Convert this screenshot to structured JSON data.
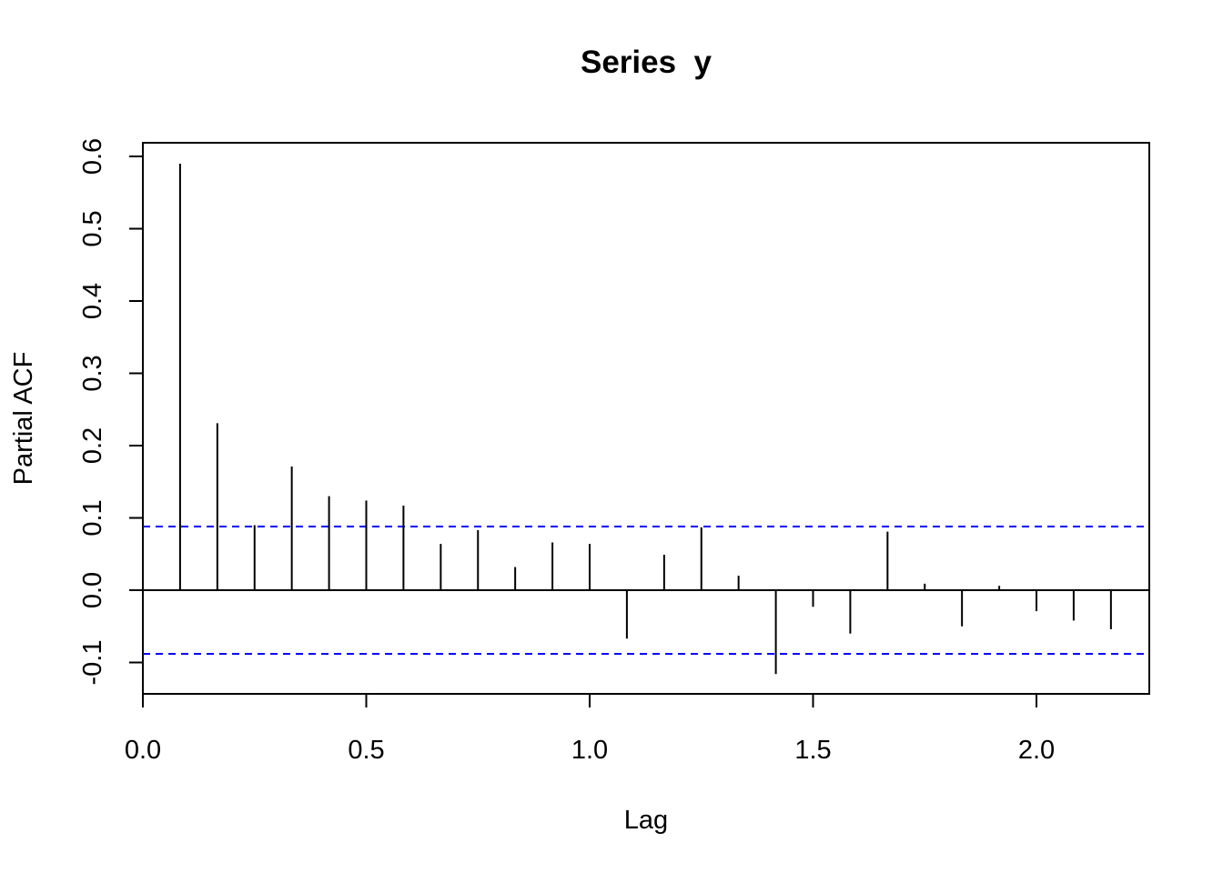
{
  "chart_data": {
    "type": "bar",
    "title": "Series  y",
    "xlabel": "Lag",
    "ylabel": "Partial ACF",
    "xlim": [
      0,
      2.25
    ],
    "ylim": [
      -0.145,
      0.62
    ],
    "x_ticks": [
      "0.0",
      "0.5",
      "1.0",
      "1.5",
      "2.0"
    ],
    "y_ticks": [
      "-0.1",
      "0.0",
      "0.1",
      "0.2",
      "0.3",
      "0.4",
      "0.5",
      "0.6"
    ],
    "confidence_bound": 0.088,
    "confidence_color": "#0000ff",
    "grid": false,
    "series": [
      {
        "x": [
          0.0833,
          0.1667,
          0.25,
          0.3333,
          0.4167,
          0.5,
          0.5833,
          0.6667,
          0.75,
          0.8333,
          0.9167,
          1.0,
          1.0833,
          1.1667,
          1.25,
          1.3333,
          1.4167,
          1.5,
          1.5833,
          1.6667,
          1.75,
          1.8333,
          1.9167,
          2.0,
          2.0833,
          2.1667
        ],
        "values": [
          0.59,
          0.231,
          0.09,
          0.171,
          0.13,
          0.124,
          0.117,
          0.064,
          0.083,
          0.032,
          0.066,
          0.064,
          -0.067,
          0.049,
          0.087,
          0.02,
          -0.116,
          -0.023,
          -0.06,
          0.081,
          0.009,
          -0.05,
          0.006,
          -0.029,
          -0.042,
          -0.054
        ]
      }
    ]
  }
}
